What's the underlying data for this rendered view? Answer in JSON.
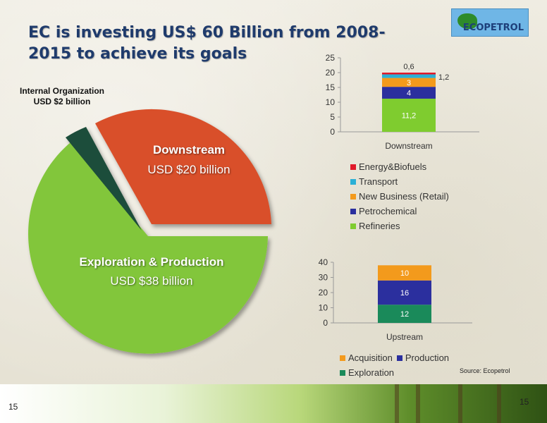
{
  "slide": {
    "title": "EC is investing US$ 60 Billion from 2008-2015 to achieve its goals",
    "logo_text": "ECOPETROL",
    "source": "Source: Ecopetrol",
    "page_number_left": "15",
    "page_number_right": "15"
  },
  "pie": {
    "internal_label": "Internal Organization USD $2 billion",
    "downstream_title": "Downstream",
    "downstream_amount": "USD $20 billion",
    "ep_title": "Exploration & Production",
    "ep_amount": "USD $38 billion",
    "colors": {
      "downstream": "#d9502a",
      "ep": "#82c63b",
      "internal": "#1f4d3a"
    }
  },
  "chart_data": [
    {
      "type": "bar",
      "categories": [
        "Downstream"
      ],
      "ylim": [
        0,
        25
      ],
      "yticks": [
        "0",
        "5",
        "10",
        "15",
        "20",
        "25"
      ],
      "series": [
        {
          "name": "Refineries",
          "values": [
            11.2
          ],
          "label": "11,2",
          "color": "#7fcc2f"
        },
        {
          "name": "Petrochemical",
          "values": [
            4
          ],
          "label": "4",
          "color": "#2b2f9e"
        },
        {
          "name": "New Business (Retail)",
          "values": [
            3
          ],
          "label": "3",
          "color": "#f39a1c"
        },
        {
          "name": "Transport",
          "values": [
            1.2
          ],
          "label": "1,2",
          "color": "#2bb0d6"
        },
        {
          "name": "Energy&Biofuels",
          "values": [
            0.6
          ],
          "label": "0,6",
          "color": "#e0192a"
        }
      ]
    },
    {
      "type": "bar",
      "categories": [
        "Upstream"
      ],
      "ylim": [
        0,
        40
      ],
      "yticks": [
        "0",
        "10",
        "20",
        "30",
        "40"
      ],
      "series": [
        {
          "name": "Exploration",
          "values": [
            12
          ],
          "label": "12",
          "color": "#1a8a5a"
        },
        {
          "name": "Production",
          "values": [
            16
          ],
          "label": "16",
          "color": "#2b2f9e"
        },
        {
          "name": "Acquisition",
          "values": [
            10
          ],
          "label": "10",
          "color": "#f39a1c"
        }
      ]
    }
  ]
}
